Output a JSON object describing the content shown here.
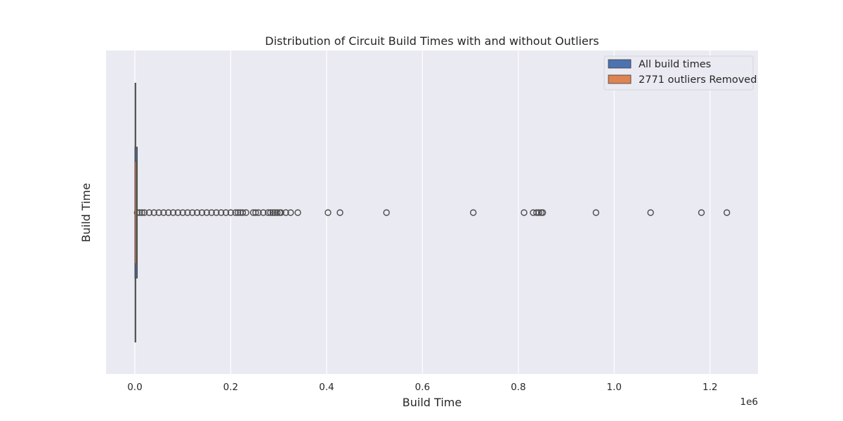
{
  "chart_data": {
    "type": "boxplot",
    "title": "Distribution of Circuit Build Times with and without Outliers",
    "xlabel": "Build Time",
    "ylabel": "Build Time",
    "x_offset_label": "1e6",
    "xlim": [
      -0.06,
      1.3
    ],
    "x_ticks": [
      0.0,
      0.2,
      0.4,
      0.6,
      0.8,
      1.0,
      1.2
    ],
    "x_tick_labels": [
      "0.0",
      "0.2",
      "0.4",
      "0.6",
      "0.8",
      "1.0",
      "1.2"
    ],
    "grid": true,
    "legend_position": "top-right",
    "colors": {
      "background": "#eaeaf2",
      "grid": "#ffffff",
      "box_line": "#4d4d4d",
      "all_build_times": "#4c72b0",
      "outliers_removed": "#dd8452"
    },
    "series": [
      {
        "name": "All build times",
        "color": "#4c72b0",
        "q1": 0.0004,
        "median": 0.0012,
        "q3": 0.0038,
        "whisker_low": 0.0,
        "whisker_high": 0.0085,
        "outliers": [
          0.005,
          0.01,
          0.015,
          0.02,
          0.03,
          0.04,
          0.05,
          0.06,
          0.07,
          0.08,
          0.09,
          0.1,
          0.11,
          0.12,
          0.13,
          0.14,
          0.15,
          0.16,
          0.17,
          0.18,
          0.19,
          0.2,
          0.21,
          0.215,
          0.22,
          0.225,
          0.232,
          0.247,
          0.252,
          0.258,
          0.268,
          0.278,
          0.283,
          0.288,
          0.292,
          0.297,
          0.302,
          0.305,
          0.315,
          0.325,
          0.34,
          0.403,
          0.428,
          0.525,
          0.706,
          0.812,
          0.831,
          0.838,
          0.843,
          0.848,
          0.851,
          0.962,
          1.076,
          1.182,
          1.235
        ]
      },
      {
        "name": "2771 outliers Removed",
        "color": "#dd8452",
        "q1": 0.0002,
        "median": 0.0008,
        "q3": 0.0018,
        "whisker_low": 0.0,
        "whisker_high": 0.004,
        "outliers": []
      }
    ]
  }
}
